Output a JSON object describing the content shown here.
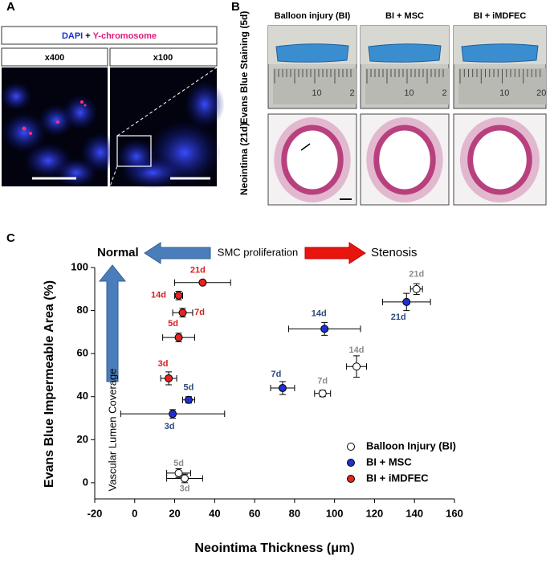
{
  "panels": {
    "A": {
      "label": "A",
      "stain_dapi": "DAPI",
      "stain_plus": "+",
      "stain_y": "Y-chromosome",
      "mag_left": "x400",
      "mag_right": "x100"
    },
    "B": {
      "label": "B",
      "columns": [
        "Balloon injury (BI)",
        "BI + MSC",
        "BI + iMDFEC"
      ],
      "rows": [
        "Evans Blue Staining (5d)",
        "Neointima (21d)"
      ],
      "rulers": [
        [
          "10",
          "2"
        ],
        [
          "10",
          "2"
        ],
        [
          "10",
          "20"
        ]
      ]
    },
    "C": {
      "label": "C"
    }
  },
  "chart_data": {
    "type": "scatter",
    "xlabel": "Neointima Thickness (μm)",
    "ylabel": "Evans Blue Impermeable Area (%)",
    "annotations": {
      "left": "Normal",
      "middle": "SMC proliferation",
      "right": "Stenosis",
      "vertical": "Vascular Lumen Coverage"
    },
    "xlim": [
      -20,
      160
    ],
    "xticks": [
      -20,
      0,
      20,
      40,
      60,
      80,
      100,
      120,
      140,
      160
    ],
    "ylim": [
      -7.5,
      100
    ],
    "yticks": [
      0,
      20,
      40,
      60,
      80,
      100
    ],
    "series": [
      {
        "name": "Balloon Injury (BI)",
        "color": "#ffffff",
        "label_color": "#8c8c8c",
        "point_labels": [
          "3d",
          "5d",
          "7d",
          "14d",
          "21d"
        ],
        "x": [
          25,
          22,
          94,
          111,
          141
        ],
        "values": [
          2,
          4.5,
          41.5,
          54,
          90
        ],
        "x_err": [
          9,
          6,
          4,
          5,
          3
        ],
        "y_err": [
          2,
          2,
          1.5,
          5,
          2.5
        ]
      },
      {
        "name": "BI + MSC",
        "color": "#1f2fd6",
        "label_color": "#2c4a7c",
        "point_labels": [
          "3d",
          "5d",
          "7d",
          "14d",
          "21d"
        ],
        "x": [
          19,
          27,
          74,
          95,
          136
        ],
        "values": [
          32,
          38.5,
          44,
          71.5,
          84
        ],
        "x_err": [
          26,
          3,
          6,
          18,
          12
        ],
        "y_err": [
          2,
          1.5,
          3,
          3,
          4
        ]
      },
      {
        "name": "BI + iMDFEC",
        "color": "#e8231f",
        "label_color": "#d42020",
        "point_labels": [
          "3d",
          "5d",
          "7d",
          "14d",
          "21d"
        ],
        "x": [
          17,
          22,
          24,
          22,
          34
        ],
        "values": [
          48.5,
          67.5,
          79,
          87,
          93
        ],
        "x_err": [
          4,
          8,
          5,
          2,
          14
        ],
        "y_err": [
          3,
          2,
          2,
          2,
          1
        ]
      }
    ]
  }
}
